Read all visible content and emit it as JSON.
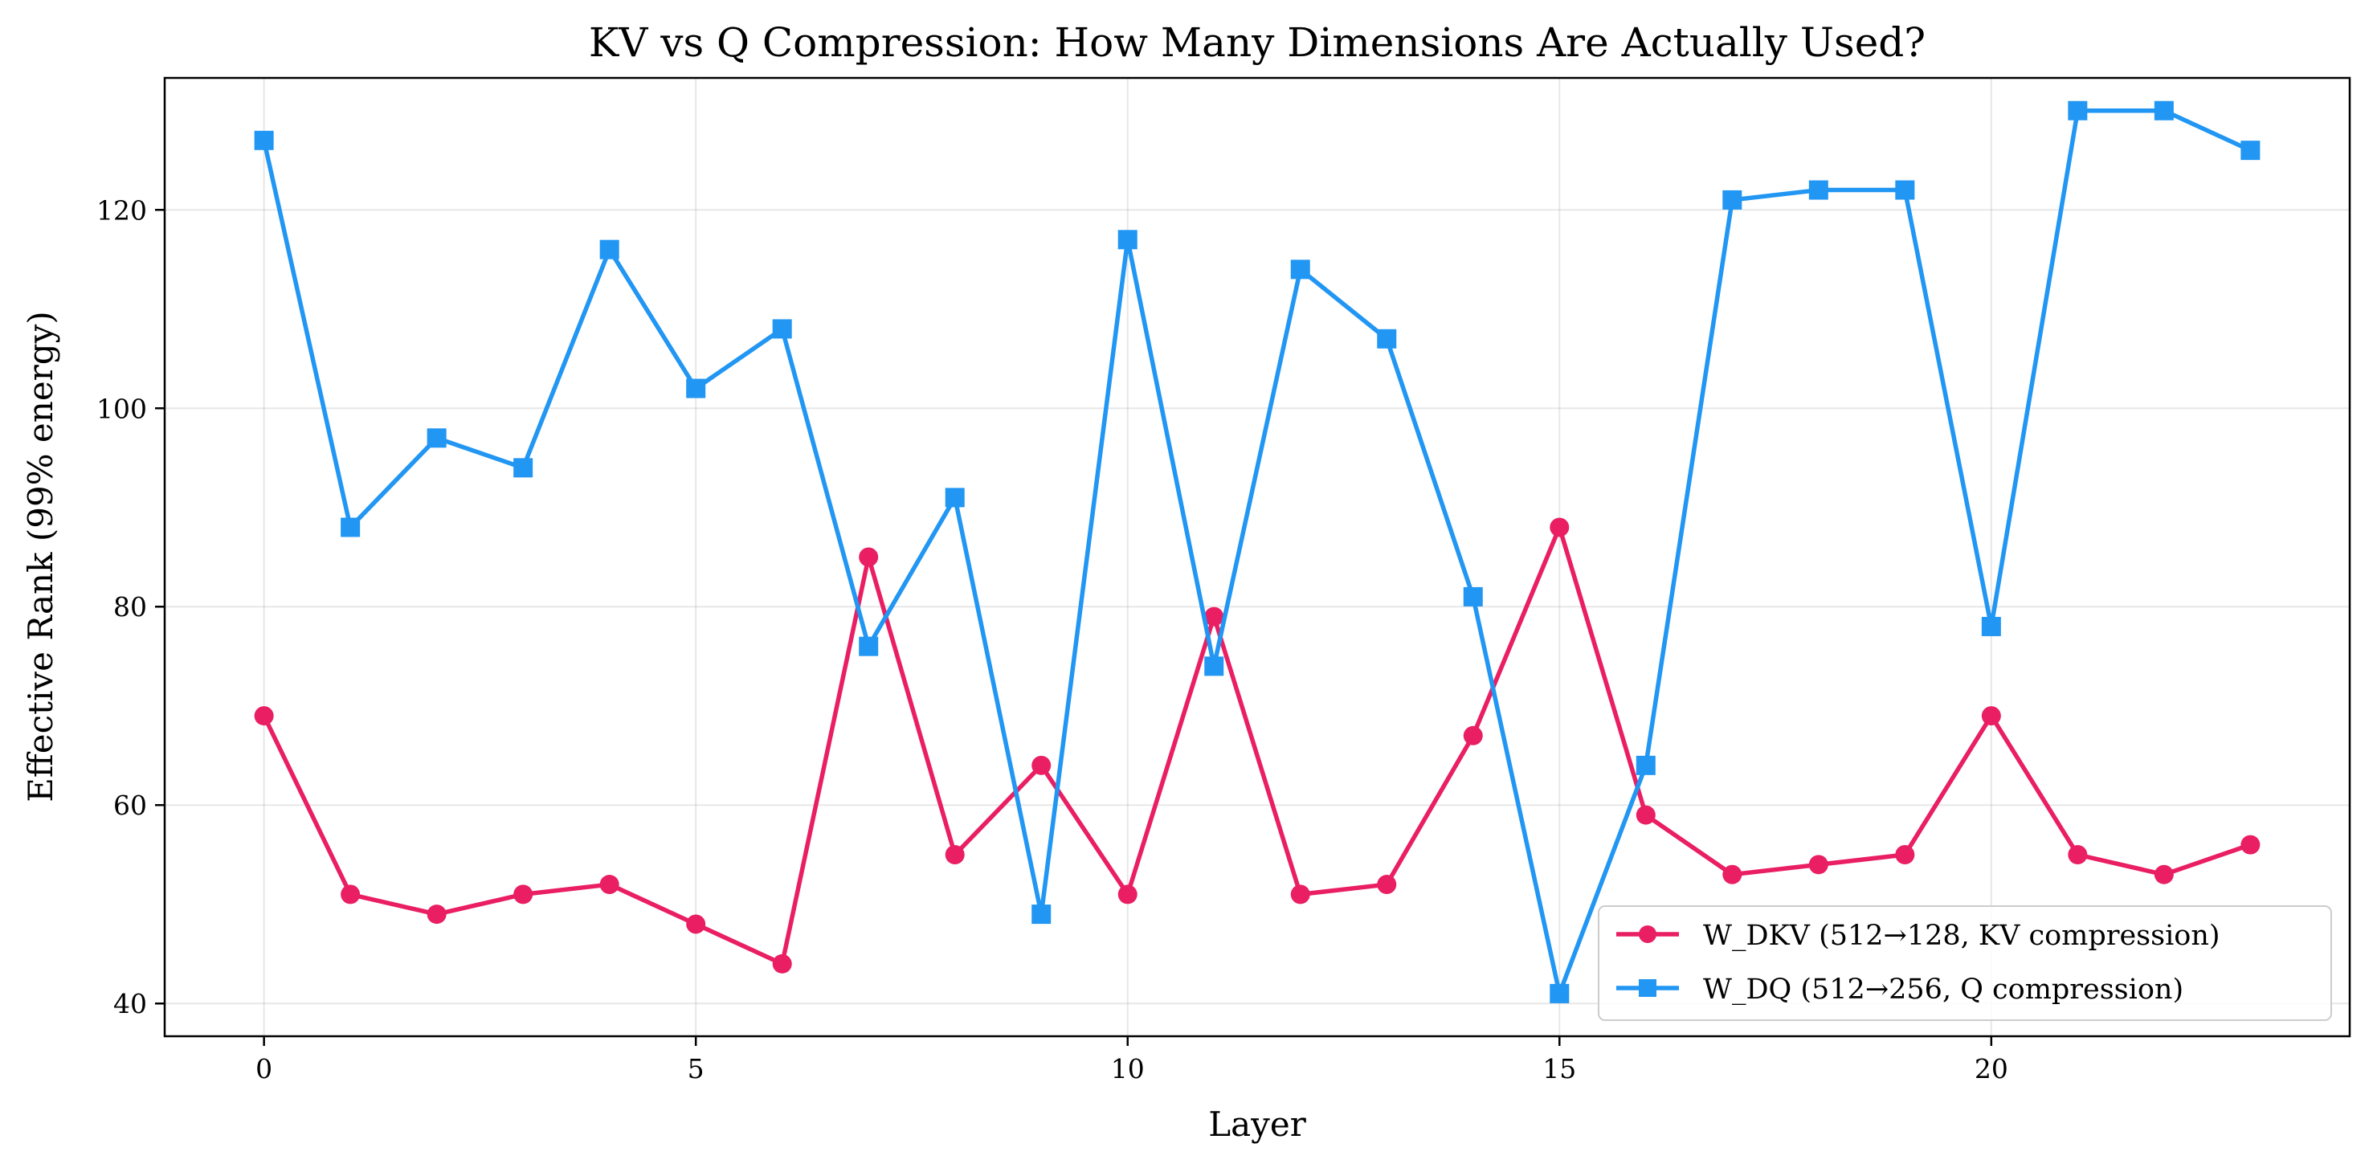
{
  "chart_data": {
    "type": "line",
    "title": "KV vs Q Compression: How Many Dimensions Are Actually Used?",
    "xlabel": "Layer",
    "ylabel": "Effective Rank (99% energy)",
    "xlim": [
      -1.15,
      24.15
    ],
    "ylim": [
      36.7,
      133.3
    ],
    "xticks": [
      0,
      5,
      10,
      15,
      20
    ],
    "yticks": [
      40,
      60,
      80,
      100,
      120
    ],
    "grid": true,
    "legend_position": "lower-right",
    "x": [
      0,
      1,
      2,
      3,
      4,
      5,
      6,
      7,
      8,
      9,
      10,
      11,
      12,
      13,
      14,
      15,
      16,
      17,
      18,
      19,
      20,
      21,
      22,
      23
    ],
    "series": [
      {
        "name": "W_DKV (512→128, KV compression)",
        "color": "#e91e63",
        "marker": "circle",
        "values": [
          69,
          51,
          49,
          51,
          52,
          48,
          44,
          85,
          55,
          64,
          51,
          79,
          51,
          52,
          67,
          88,
          59,
          53,
          54,
          55,
          69,
          55,
          53,
          56
        ]
      },
      {
        "name": "W_DQ (512→256, Q compression)",
        "color": "#2196f3",
        "marker": "square",
        "values": [
          127,
          88,
          97,
          94,
          116,
          102,
          108,
          76,
          91,
          49,
          117,
          74,
          114,
          107,
          81,
          41,
          64,
          121,
          122,
          122,
          78,
          130,
          130,
          126
        ]
      }
    ]
  }
}
